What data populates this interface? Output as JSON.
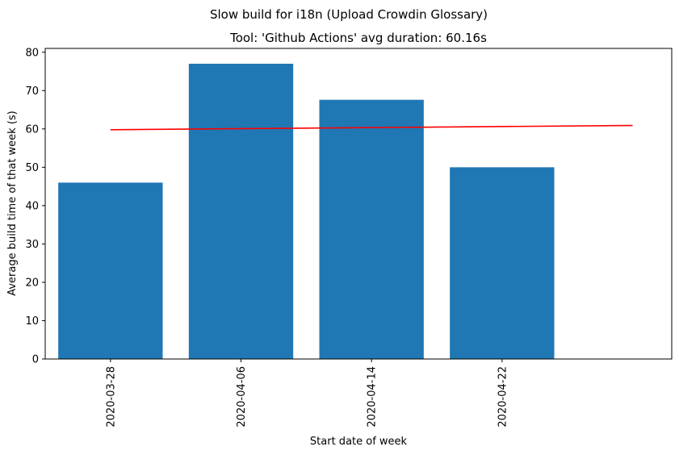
{
  "chart_data": {
    "type": "bar",
    "suptitle": "Slow build for i18n (Upload Crowdin Glossary)",
    "title": "Tool: 'Github Actions' avg duration: 60.16s",
    "xlabel": "Start date of week",
    "ylabel": "Average build time of that week (s)",
    "categories": [
      "2020-03-28",
      "2020-04-06",
      "2020-04-14",
      "2020-04-22"
    ],
    "values": [
      46,
      77,
      67.6,
      50
    ],
    "ylim": [
      0,
      81
    ],
    "yticks": [
      0,
      10,
      20,
      30,
      40,
      50,
      60,
      70,
      80
    ],
    "bar_color": "#1f77b4",
    "trend_line": {
      "color": "#ff0000",
      "x_positions": [
        0,
        4
      ],
      "values": [
        59.8,
        60.9
      ]
    },
    "grid": false,
    "legend": "none"
  }
}
